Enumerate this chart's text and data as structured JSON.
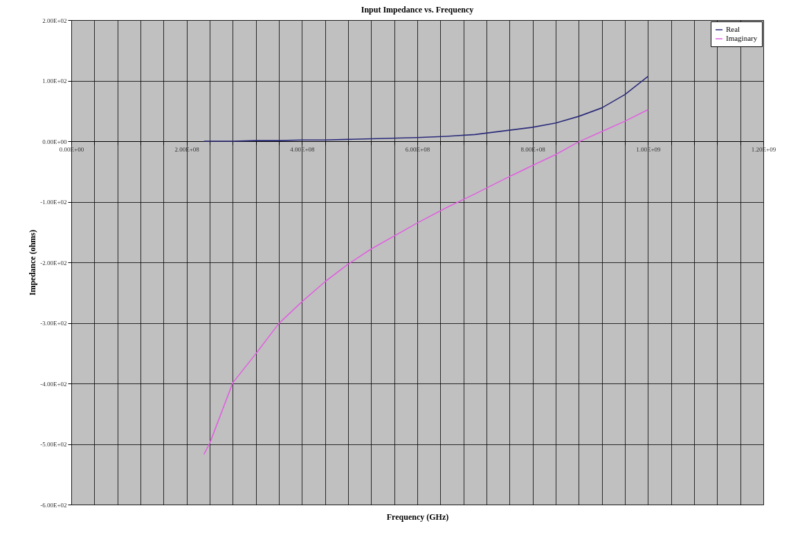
{
  "chart_data": {
    "type": "line",
    "title": "Input Impedance vs. Frequency",
    "xlabel": "Frequency (GHz)",
    "ylabel": "Impedance (ohms)",
    "x": [
      230000000,
      240000000,
      280000000,
      320000000,
      360000000,
      400000000,
      440000000,
      480000000,
      520000000,
      600000000,
      650000000,
      700000000,
      750000000,
      800000000,
      840000000,
      880000000,
      920000000,
      960000000,
      1000000000
    ],
    "series": [
      {
        "name": "Real",
        "color": "#2a2a7a",
        "values": [
          0,
          0,
          0,
          1,
          1,
          2,
          2,
          3,
          4,
          6,
          8,
          11,
          17,
          23,
          30,
          41,
          55,
          77,
          107
        ]
      },
      {
        "name": "Imaginary",
        "color": "#e060e0",
        "values": [
          -517,
          -499,
          -399,
          -351,
          -301,
          -265,
          -232,
          -203,
          -178,
          -135,
          -110,
          -87,
          -63,
          -40,
          -22,
          -1,
          16,
          33,
          52
        ]
      }
    ],
    "xlim": [
      0,
      1200000000
    ],
    "xticks": [
      {
        "value": 0,
        "label": "0.00E+00"
      },
      {
        "value": 40000000,
        "label": null
      },
      {
        "value": 80000000,
        "label": null
      },
      {
        "value": 120000000,
        "label": null
      },
      {
        "value": 160000000,
        "label": null
      },
      {
        "value": 200000000,
        "label": "2.00E+08"
      },
      {
        "value": 240000000,
        "label": null
      },
      {
        "value": 280000000,
        "label": null
      },
      {
        "value": 320000000,
        "label": null
      },
      {
        "value": 360000000,
        "label": null
      },
      {
        "value": 400000000,
        "label": "4.00E+08"
      },
      {
        "value": 440000000,
        "label": null
      },
      {
        "value": 480000000,
        "label": null
      },
      {
        "value": 520000000,
        "label": null
      },
      {
        "value": 560000000,
        "label": null
      },
      {
        "value": 600000000,
        "label": "6.00E+08"
      },
      {
        "value": 640000000,
        "label": null
      },
      {
        "value": 680000000,
        "label": null
      },
      {
        "value": 720000000,
        "label": null
      },
      {
        "value": 760000000,
        "label": null
      },
      {
        "value": 800000000,
        "label": "8.00E+08"
      },
      {
        "value": 840000000,
        "label": null
      },
      {
        "value": 880000000,
        "label": null
      },
      {
        "value": 920000000,
        "label": null
      },
      {
        "value": 960000000,
        "label": null
      },
      {
        "value": 1000000000,
        "label": "1.00E+09"
      },
      {
        "value": 1040000000,
        "label": null
      },
      {
        "value": 1080000000,
        "label": null
      },
      {
        "value": 1120000000,
        "label": null
      },
      {
        "value": 1160000000,
        "label": null
      },
      {
        "value": 1200000000,
        "label": "1.20E+09"
      }
    ],
    "ylim": [
      -600,
      200
    ],
    "yticks": [
      {
        "value": -600,
        "label": "-6.00E+02"
      },
      {
        "value": -500,
        "label": "-5.00E+02"
      },
      {
        "value": -400,
        "label": "-4.00E+02"
      },
      {
        "value": -300,
        "label": "-3.00E+02"
      },
      {
        "value": -200,
        "label": "-2.00E+02"
      },
      {
        "value": -100,
        "label": "-1.00E+02"
      },
      {
        "value": 0,
        "label": "0.00E+00"
      },
      {
        "value": 100,
        "label": "1.00E+02"
      },
      {
        "value": 200,
        "label": "2.00E+02"
      }
    ],
    "grid": true,
    "legend": "top right",
    "line_style": "solid"
  }
}
